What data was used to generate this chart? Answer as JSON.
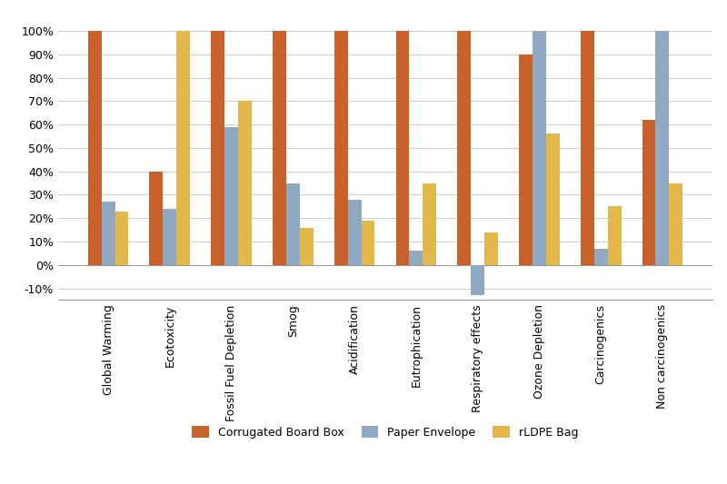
{
  "categories": [
    "Global Warming",
    "Ecotoxicity",
    "Fossil Fuel Depletion",
    "Smog",
    "Acidification",
    "Eutrophication",
    "Respiratory effects",
    "Ozone Depletion",
    "Carcinogenics",
    "Non carcinogenics"
  ],
  "corrugated_box": [
    100,
    40,
    100,
    100,
    100,
    100,
    100,
    90,
    100,
    62
  ],
  "paper_envelope": [
    27,
    24,
    59,
    35,
    28,
    6,
    -13,
    100,
    7,
    100
  ],
  "rldpe_bag": [
    23,
    100,
    70,
    16,
    19,
    35,
    14,
    56,
    25,
    35
  ],
  "colors": {
    "corrugated": "#C8622A",
    "paper": "#8EA9C1",
    "rldpe": "#E2B84A"
  },
  "ylim": [
    -15,
    107
  ],
  "yticks": [
    -10,
    0,
    10,
    20,
    30,
    40,
    50,
    60,
    70,
    80,
    90,
    100
  ],
  "ytick_labels": [
    "-10%",
    "0%",
    "10%",
    "20%",
    "30%",
    "40%",
    "50%",
    "60%",
    "70%",
    "80%",
    "90%",
    "100%"
  ],
  "legend_labels": [
    "Corrugated Board Box",
    "Paper Envelope",
    "rLDPE Bag"
  ],
  "background_color": "#FFFFFF",
  "grid_color": "#CCCCCC",
  "bar_width": 0.22,
  "figsize": [
    8.0,
    5.33
  ],
  "dpi": 100
}
